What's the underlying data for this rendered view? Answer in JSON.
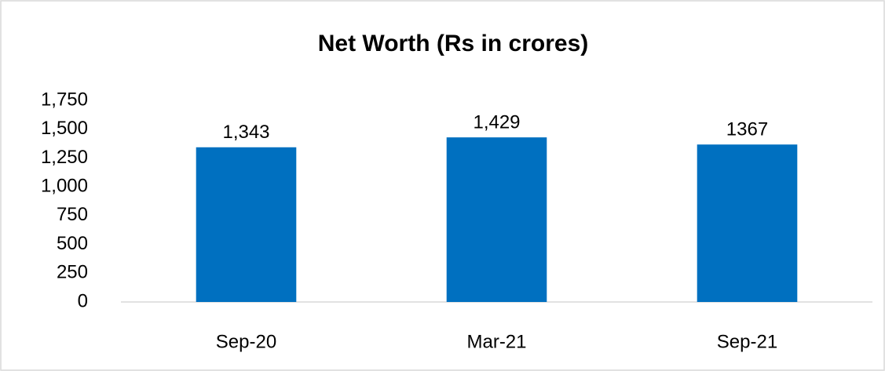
{
  "chart_data": {
    "type": "bar",
    "title": "Net Worth (Rs in crores)",
    "categories": [
      "Sep-20",
      "Mar-21",
      "Sep-21"
    ],
    "values": [
      1343,
      1429,
      1367
    ],
    "value_labels": [
      "1,343",
      "1,429",
      "1367"
    ],
    "color": "#0070c0",
    "ylim": [
      0,
      1750
    ],
    "yticks": [
      0,
      250,
      500,
      750,
      {
        "value": 1000,
        "label": "1,000"
      },
      {
        "value": 1250,
        "label": "1,250"
      },
      {
        "value": 1500,
        "label": "1,500"
      },
      {
        "value": 1750,
        "label": "1,750"
      }
    ],
    "grid": false
  }
}
